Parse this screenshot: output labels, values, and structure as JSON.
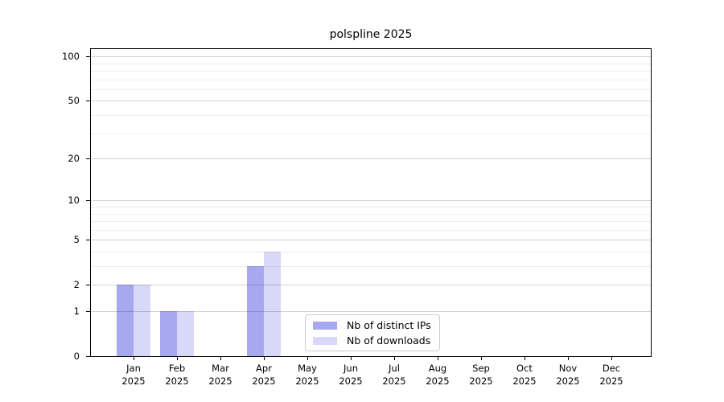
{
  "chart_data": {
    "type": "bar",
    "title": "polspline 2025",
    "categories": [
      "Jan 2025",
      "Feb 2025",
      "Mar 2025",
      "Apr 2025",
      "May 2025",
      "Jun 2025",
      "Jul 2025",
      "Aug 2025",
      "Sep 2025",
      "Oct 2025",
      "Nov 2025",
      "Dec 2025"
    ],
    "month_labels": [
      "Jan",
      "Feb",
      "Mar",
      "Apr",
      "May",
      "Jun",
      "Jul",
      "Aug",
      "Sep",
      "Oct",
      "Nov",
      "Dec"
    ],
    "year_label": "2025",
    "series": [
      {
        "name": "Nb of distinct IPs",
        "color": "#a8a8f0",
        "values": [
          2,
          1,
          0,
          3,
          0,
          0,
          0,
          0,
          0,
          0,
          0,
          0
        ]
      },
      {
        "name": "Nb of downloads",
        "color": "#d8d8f8",
        "values": [
          2,
          1,
          0,
          4,
          0,
          0,
          0,
          0,
          0,
          0,
          0,
          0
        ]
      }
    ],
    "yscale": "log(x+1)",
    "ytick_values": [
      0,
      1,
      2,
      5,
      10,
      20,
      50,
      100
    ],
    "ytick_labels": [
      "0",
      "1",
      "2",
      "5",
      "10",
      "20",
      "50",
      "100"
    ],
    "minor_grid_values": [
      3,
      4,
      6,
      7,
      8,
      9,
      30,
      40,
      60,
      70,
      80,
      90
    ],
    "ylim": [
      0,
      110
    ],
    "grid": "horizontal",
    "legend_position": "bottom-center",
    "xlabel": "",
    "ylabel": ""
  },
  "colors": {
    "bar_distinct_ips": "#a8a8f0",
    "bar_downloads": "#d8d8f8",
    "grid_major": "#d2d2d2",
    "grid_minor": "#ededed",
    "axis": "#000000",
    "background": "#ffffff"
  }
}
